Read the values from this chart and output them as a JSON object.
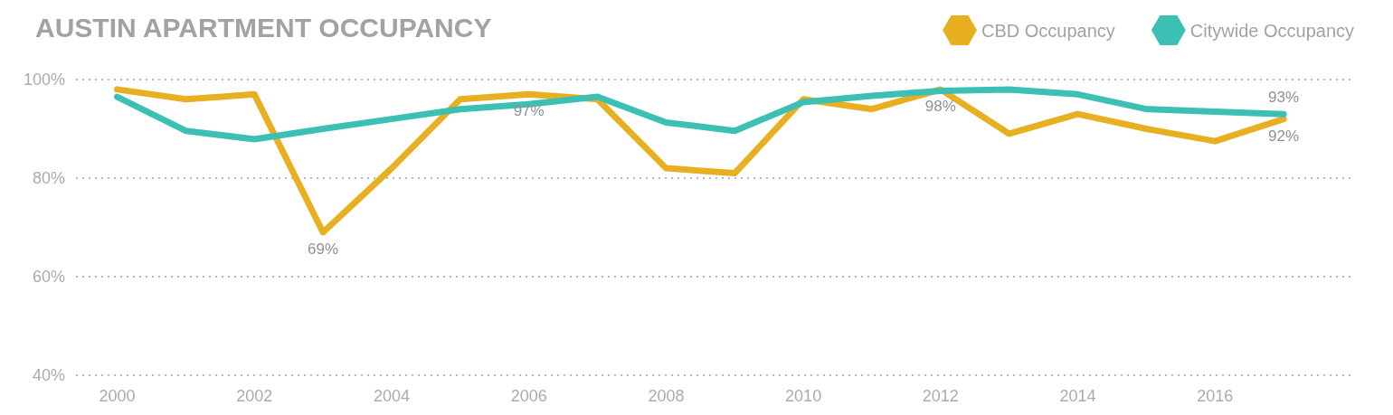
{
  "chart_data": {
    "type": "line",
    "title": "AUSTIN APARTMENT OCCUPANCY",
    "x": [
      2000,
      2001,
      2002,
      2003,
      2004,
      2005,
      2006,
      2007,
      2008,
      2009,
      2010,
      2011,
      2012,
      2013,
      2014,
      2015,
      2016,
      2017
    ],
    "series": [
      {
        "name": "CBD Occupancy",
        "color": "#e8b020",
        "values": [
          98,
          96,
          97,
          69,
          82,
          96,
          97,
          96,
          82,
          81,
          96,
          94,
          98,
          89,
          93,
          90,
          87.5,
          92
        ],
        "value_labels": [
          null,
          null,
          null,
          "69%",
          null,
          null,
          "97%",
          null,
          null,
          null,
          null,
          null,
          "98%",
          null,
          null,
          null,
          null,
          "92%"
        ]
      },
      {
        "name": "Citywide Occupancy",
        "color": "#3cc0b4",
        "values": [
          96.5,
          89.6,
          87.9,
          90,
          92,
          94,
          95,
          96.5,
          91.3,
          89.6,
          95.4,
          96.7,
          97.7,
          98,
          97,
          94,
          93.5,
          93
        ],
        "value_labels": [
          null,
          null,
          null,
          null,
          null,
          null,
          null,
          null,
          null,
          null,
          null,
          null,
          null,
          null,
          null,
          null,
          null,
          "93%"
        ]
      }
    ],
    "xlim": [
      1999.4,
      2018
    ],
    "xticks": [
      2000,
      2002,
      2004,
      2006,
      2008,
      2010,
      2012,
      2014,
      2016
    ],
    "ylim": [
      40,
      100
    ],
    "yticks": [
      {
        "value": 40,
        "label": "40%"
      },
      {
        "value": 60,
        "label": "60%"
      },
      {
        "value": 80,
        "label": "80%"
      },
      {
        "value": 100,
        "label": "100%"
      }
    ],
    "grid": "y",
    "legend": "top right",
    "line_style": "solid"
  }
}
